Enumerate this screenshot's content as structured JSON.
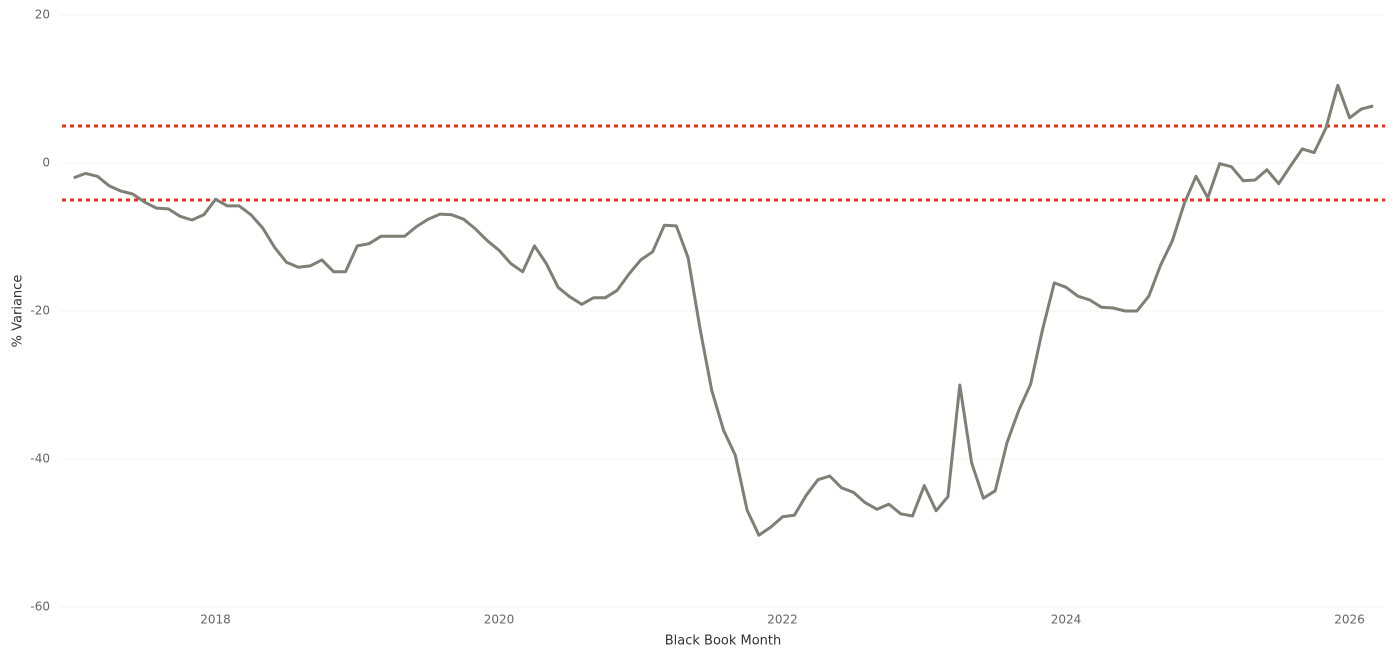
{
  "chart_data": {
    "type": "line",
    "x_label": "Black Book Month",
    "y_label": "% Variance",
    "x": [
      "2017-01",
      "2017-02",
      "2017-03",
      "2017-04",
      "2017-05",
      "2017-06",
      "2017-07",
      "2017-08",
      "2017-09",
      "2017-10",
      "2017-11",
      "2017-12",
      "2018-01",
      "2018-02",
      "2018-03",
      "2018-04",
      "2018-05",
      "2018-06",
      "2018-07",
      "2018-08",
      "2018-09",
      "2018-10",
      "2018-11",
      "2018-12",
      "2019-01",
      "2019-02",
      "2019-03",
      "2019-04",
      "2019-05",
      "2019-06",
      "2019-07",
      "2019-08",
      "2019-09",
      "2019-10",
      "2019-11",
      "2019-12",
      "2020-01",
      "2020-02",
      "2020-03",
      "2020-04",
      "2020-05",
      "2020-06",
      "2020-07",
      "2020-08",
      "2020-09",
      "2020-10",
      "2020-11",
      "2020-12",
      "2021-01",
      "2021-02",
      "2021-03",
      "2021-04",
      "2021-05",
      "2021-06",
      "2021-07",
      "2021-08",
      "2021-09",
      "2021-10",
      "2021-11",
      "2021-12",
      "2022-01",
      "2022-02",
      "2022-03",
      "2022-04",
      "2022-05",
      "2022-06",
      "2022-07",
      "2022-08",
      "2022-09",
      "2022-10",
      "2022-11",
      "2022-12",
      "2023-01",
      "2023-02",
      "2023-03",
      "2023-04",
      "2023-05",
      "2023-06",
      "2023-07",
      "2023-08",
      "2023-09",
      "2023-10",
      "2023-11",
      "2023-12",
      "2024-01",
      "2024-02",
      "2024-03",
      "2024-04",
      "2024-05",
      "2024-06",
      "2024-07",
      "2024-08",
      "2024-09",
      "2024-10",
      "2024-11",
      "2024-12",
      "2025-01",
      "2025-02",
      "2025-03",
      "2025-04",
      "2025-05",
      "2025-06",
      "2025-07",
      "2025-08",
      "2025-09",
      "2025-10",
      "2025-11",
      "2025-12",
      "2026-01",
      "2026-02",
      "2026-03"
    ],
    "series": [
      {
        "color": "#7f7f75",
        "values": [
          -2.0,
          -1.4,
          -1.8,
          -3.1,
          -3.8,
          -4.2,
          -5.3,
          -6.1,
          -6.2,
          -7.2,
          -7.7,
          -7.0,
          -4.9,
          -5.8,
          -5.8,
          -7.0,
          -8.8,
          -11.4,
          -13.4,
          -14.1,
          -13.9,
          -13.1,
          -14.7,
          -14.7,
          -11.2,
          -10.9,
          -9.9,
          -9.9,
          -9.9,
          -8.6,
          -7.6,
          -6.9,
          -7.0,
          -7.6,
          -8.9,
          -10.5,
          -11.8,
          -13.6,
          -14.7,
          -11.2,
          -13.6,
          -16.8,
          -18.1,
          -19.1,
          -18.2,
          -18.2,
          -17.2,
          -15.0,
          -13.1,
          -12.0,
          -8.4,
          -8.5,
          -12.8,
          -22.3,
          -30.7,
          -36.1,
          -39.5,
          -46.9,
          -50.3,
          -49.2,
          -47.8,
          -47.6,
          -44.9,
          -42.8,
          -42.3,
          -43.9,
          -44.5,
          -45.9,
          -46.8,
          -46.1,
          -47.4,
          -47.7,
          -43.6,
          -47.0,
          -45.1,
          -30.0,
          -40.5,
          -45.3,
          -44.3,
          -37.8,
          -33.4,
          -29.9,
          -22.6,
          -16.2,
          -16.8,
          -18.0,
          -18.5,
          -19.5,
          -19.6,
          -20.0,
          -20.0,
          -18.0,
          -13.8,
          -10.5,
          -5.5,
          -1.8,
          -4.7,
          -0.1,
          -0.5,
          -2.4,
          -2.3,
          -0.9,
          -2.8,
          -0.4,
          1.9,
          1.4,
          4.7,
          10.5,
          6.1,
          7.3,
          7.7
        ]
      }
    ],
    "reference_lines": [
      {
        "value": 5,
        "color": "#e8301c"
      },
      {
        "value": -5,
        "color": "#e8301c"
      }
    ],
    "xlim": [
      "2016-12",
      "2026-04"
    ],
    "xticks": [
      {
        "value": "2018-01",
        "label": "2018"
      },
      {
        "value": "2020-01",
        "label": "2020"
      },
      {
        "value": "2022-01",
        "label": "2022"
      },
      {
        "value": "2024-01",
        "label": "2024"
      },
      {
        "value": "2026-01",
        "label": "2026"
      }
    ],
    "ylim": [
      -60,
      20
    ],
    "yticks": [
      20,
      0,
      -20,
      -40,
      -60
    ],
    "grid": true
  }
}
